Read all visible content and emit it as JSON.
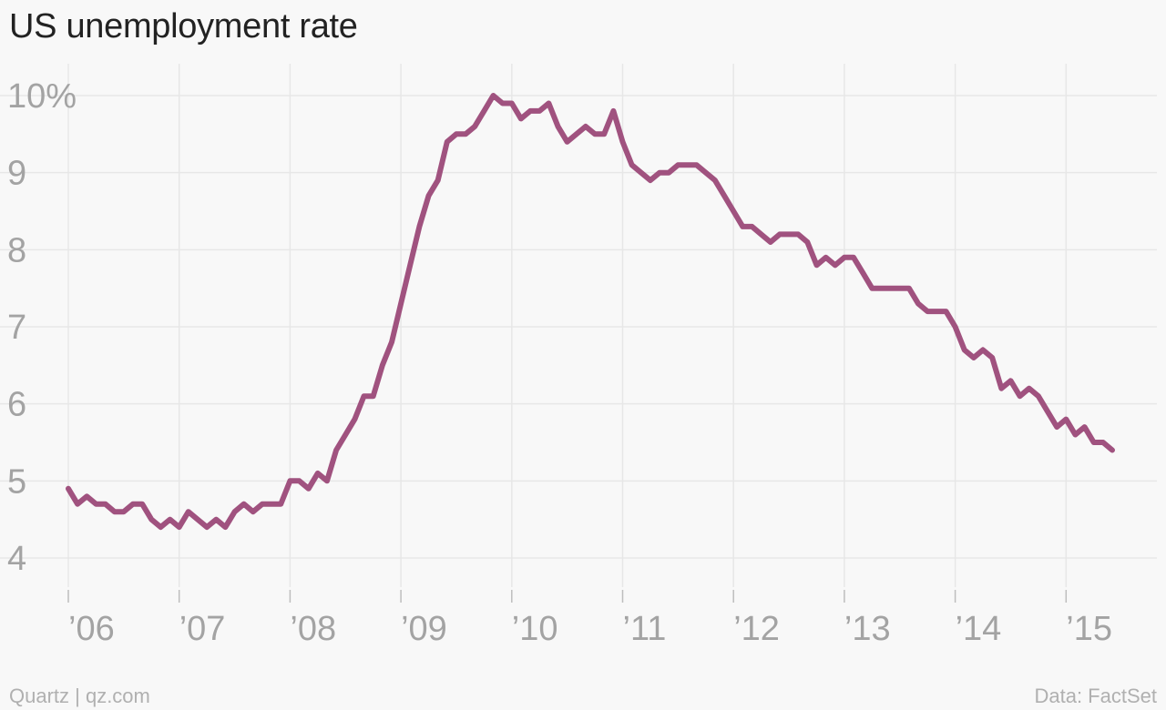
{
  "chart_data": {
    "type": "line",
    "title": "US unemployment rate",
    "xlabel": "",
    "ylabel": "",
    "x_start": "2006-01",
    "x_end": "2015-04",
    "xlim": [
      "2006-01",
      "2015-12"
    ],
    "ylim": [
      4,
      10
    ],
    "grid": true,
    "y_ticks": [
      {
        "value": 10,
        "label": "10%"
      },
      {
        "value": 9,
        "label": "9"
      },
      {
        "value": 8,
        "label": "8"
      },
      {
        "value": 7,
        "label": "7"
      },
      {
        "value": 6,
        "label": "6"
      },
      {
        "value": 5,
        "label": "5"
      },
      {
        "value": 4,
        "label": "4"
      }
    ],
    "x_ticks": [
      {
        "year": 2006,
        "label": "’06"
      },
      {
        "year": 2007,
        "label": "’07"
      },
      {
        "year": 2008,
        "label": "’08"
      },
      {
        "year": 2009,
        "label": "’09"
      },
      {
        "year": 2010,
        "label": "’10"
      },
      {
        "year": 2011,
        "label": "’11"
      },
      {
        "year": 2012,
        "label": "’12"
      },
      {
        "year": 2013,
        "label": "’13"
      },
      {
        "year": 2014,
        "label": "’14"
      },
      {
        "year": 2015,
        "label": "’15"
      }
    ],
    "series": [
      {
        "color": "#a0527f",
        "values": [
          4.9,
          4.7,
          4.8,
          4.7,
          4.7,
          4.6,
          4.6,
          4.7,
          4.7,
          4.5,
          4.4,
          4.5,
          4.4,
          4.6,
          4.5,
          4.4,
          4.5,
          4.4,
          4.6,
          4.7,
          4.6,
          4.7,
          4.7,
          4.7,
          5.0,
          5.0,
          4.9,
          5.1,
          5.0,
          5.4,
          5.6,
          5.8,
          6.1,
          6.1,
          6.5,
          6.8,
          7.3,
          7.8,
          8.3,
          8.7,
          8.9,
          9.4,
          9.5,
          9.5,
          9.6,
          9.8,
          10.0,
          9.9,
          9.9,
          9.7,
          9.8,
          9.8,
          9.9,
          9.6,
          9.4,
          9.5,
          9.6,
          9.5,
          9.5,
          9.8,
          9.4,
          9.1,
          9.0,
          8.9,
          9.0,
          9.0,
          9.1,
          9.1,
          9.1,
          9.0,
          8.9,
          8.7,
          8.5,
          8.3,
          8.3,
          8.2,
          8.1,
          8.2,
          8.2,
          8.2,
          8.1,
          7.8,
          7.9,
          7.8,
          7.9,
          7.9,
          7.7,
          7.5,
          7.5,
          7.5,
          7.5,
          7.5,
          7.3,
          7.2,
          7.2,
          7.2,
          7.0,
          6.7,
          6.6,
          6.7,
          6.6,
          6.2,
          6.3,
          6.1,
          6.2,
          6.1,
          5.9,
          5.7,
          5.8,
          5.6,
          5.7,
          5.5,
          5.5,
          5.4
        ]
      }
    ]
  },
  "footer": {
    "source_left": "Quartz | qz.com",
    "source_right": "Data: FactSet"
  }
}
